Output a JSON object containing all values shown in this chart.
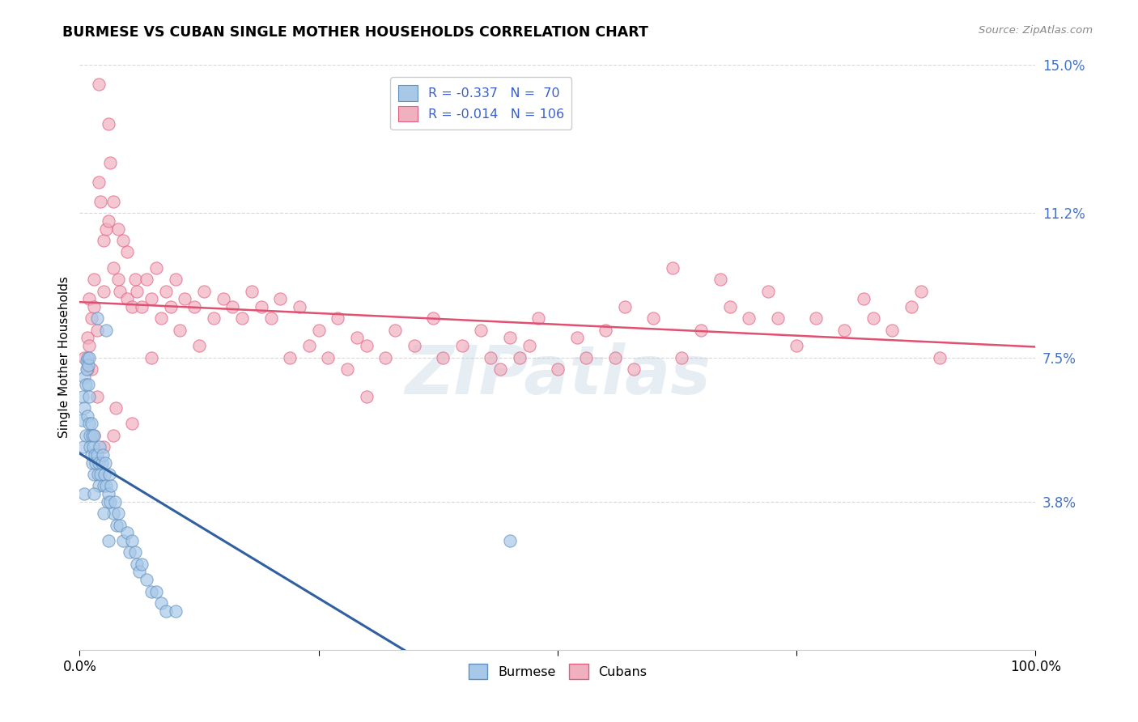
{
  "title": "BURMESE VS CUBAN SINGLE MOTHER HOUSEHOLDS CORRELATION CHART",
  "source": "Source: ZipAtlas.com",
  "ylabel": "Single Mother Households",
  "xmin": 0.0,
  "xmax": 100.0,
  "ymin": 0.0,
  "ymax": 15.0,
  "yticks": [
    3.8,
    7.5,
    11.2,
    15.0
  ],
  "ytick_labels": [
    "3.8%",
    "7.5%",
    "11.2%",
    "15.0%"
  ],
  "burmese_color": "#a8c8e8",
  "cuban_color": "#f0b0c0",
  "burmese_edge_color": "#6090c0",
  "cuban_edge_color": "#e06080",
  "burmese_line_color": "#3060a0",
  "cuban_line_color": "#e05070",
  "burmese_dash_color": "#90b8d8",
  "legend_label1": "R = -0.337   N =  70",
  "legend_label2": "R = -0.014   N = 106",
  "watermark": "ZIPatlas",
  "background_color": "#ffffff",
  "grid_color": "#d8d8d8",
  "burmese_data": [
    [
      0.2,
      5.9
    ],
    [
      0.3,
      6.5
    ],
    [
      0.4,
      5.2
    ],
    [
      0.5,
      7.0
    ],
    [
      0.5,
      6.2
    ],
    [
      0.6,
      6.8
    ],
    [
      0.6,
      5.5
    ],
    [
      0.7,
      7.4
    ],
    [
      0.7,
      7.2
    ],
    [
      0.8,
      7.5
    ],
    [
      0.8,
      6.0
    ],
    [
      0.9,
      7.3
    ],
    [
      0.9,
      6.8
    ],
    [
      1.0,
      7.5
    ],
    [
      1.0,
      6.5
    ],
    [
      1.0,
      5.8
    ],
    [
      1.1,
      5.5
    ],
    [
      1.1,
      5.2
    ],
    [
      1.2,
      5.8
    ],
    [
      1.2,
      5.0
    ],
    [
      1.3,
      4.8
    ],
    [
      1.3,
      5.5
    ],
    [
      1.4,
      5.2
    ],
    [
      1.5,
      5.5
    ],
    [
      1.5,
      4.5
    ],
    [
      1.6,
      5.0
    ],
    [
      1.7,
      4.8
    ],
    [
      1.8,
      5.0
    ],
    [
      1.9,
      4.5
    ],
    [
      2.0,
      4.2
    ],
    [
      2.0,
      4.8
    ],
    [
      2.1,
      5.2
    ],
    [
      2.2,
      4.5
    ],
    [
      2.3,
      4.8
    ],
    [
      2.4,
      5.0
    ],
    [
      2.5,
      4.2
    ],
    [
      2.6,
      4.5
    ],
    [
      2.7,
      4.8
    ],
    [
      2.8,
      4.2
    ],
    [
      2.9,
      3.8
    ],
    [
      3.0,
      4.0
    ],
    [
      3.1,
      4.5
    ],
    [
      3.2,
      3.8
    ],
    [
      3.3,
      4.2
    ],
    [
      3.5,
      3.5
    ],
    [
      3.7,
      3.8
    ],
    [
      3.9,
      3.2
    ],
    [
      4.0,
      3.5
    ],
    [
      4.2,
      3.2
    ],
    [
      4.5,
      2.8
    ],
    [
      5.0,
      3.0
    ],
    [
      5.2,
      2.5
    ],
    [
      5.5,
      2.8
    ],
    [
      5.8,
      2.5
    ],
    [
      6.0,
      2.2
    ],
    [
      6.2,
      2.0
    ],
    [
      6.5,
      2.2
    ],
    [
      7.0,
      1.8
    ],
    [
      7.5,
      1.5
    ],
    [
      8.0,
      1.5
    ],
    [
      8.5,
      1.2
    ],
    [
      9.0,
      1.0
    ],
    [
      10.0,
      1.0
    ],
    [
      2.8,
      8.2
    ],
    [
      1.8,
      8.5
    ],
    [
      0.5,
      4.0
    ],
    [
      1.5,
      4.0
    ],
    [
      2.5,
      3.5
    ],
    [
      45.0,
      2.8
    ],
    [
      3.0,
      2.8
    ]
  ],
  "cuban_data": [
    [
      0.5,
      7.5
    ],
    [
      0.8,
      8.0
    ],
    [
      1.0,
      7.8
    ],
    [
      1.0,
      9.0
    ],
    [
      1.2,
      8.5
    ],
    [
      1.2,
      7.2
    ],
    [
      1.5,
      8.8
    ],
    [
      1.5,
      9.5
    ],
    [
      1.8,
      8.2
    ],
    [
      2.0,
      14.5
    ],
    [
      2.0,
      12.0
    ],
    [
      2.2,
      11.5
    ],
    [
      2.5,
      10.5
    ],
    [
      2.5,
      9.2
    ],
    [
      2.8,
      10.8
    ],
    [
      3.0,
      13.5
    ],
    [
      3.0,
      11.0
    ],
    [
      3.2,
      12.5
    ],
    [
      3.5,
      9.8
    ],
    [
      3.5,
      11.5
    ],
    [
      4.0,
      9.5
    ],
    [
      4.0,
      10.8
    ],
    [
      4.2,
      9.2
    ],
    [
      4.5,
      10.5
    ],
    [
      5.0,
      9.0
    ],
    [
      5.0,
      10.2
    ],
    [
      5.5,
      8.8
    ],
    [
      5.8,
      9.5
    ],
    [
      6.0,
      9.2
    ],
    [
      6.5,
      8.8
    ],
    [
      7.0,
      9.5
    ],
    [
      7.5,
      9.0
    ],
    [
      8.0,
      9.8
    ],
    [
      8.5,
      8.5
    ],
    [
      9.0,
      9.2
    ],
    [
      9.5,
      8.8
    ],
    [
      10.0,
      9.5
    ],
    [
      10.5,
      8.2
    ],
    [
      11.0,
      9.0
    ],
    [
      12.0,
      8.8
    ],
    [
      12.5,
      7.8
    ],
    [
      13.0,
      9.2
    ],
    [
      14.0,
      8.5
    ],
    [
      15.0,
      9.0
    ],
    [
      16.0,
      8.8
    ],
    [
      17.0,
      8.5
    ],
    [
      18.0,
      9.2
    ],
    [
      19.0,
      8.8
    ],
    [
      20.0,
      8.5
    ],
    [
      21.0,
      9.0
    ],
    [
      22.0,
      7.5
    ],
    [
      23.0,
      8.8
    ],
    [
      24.0,
      7.8
    ],
    [
      25.0,
      8.2
    ],
    [
      26.0,
      7.5
    ],
    [
      27.0,
      8.5
    ],
    [
      28.0,
      7.2
    ],
    [
      29.0,
      8.0
    ],
    [
      30.0,
      7.8
    ],
    [
      32.0,
      7.5
    ],
    [
      33.0,
      8.2
    ],
    [
      35.0,
      7.8
    ],
    [
      37.0,
      8.5
    ],
    [
      38.0,
      7.5
    ],
    [
      40.0,
      7.8
    ],
    [
      42.0,
      8.2
    ],
    [
      43.0,
      7.5
    ],
    [
      44.0,
      7.2
    ],
    [
      45.0,
      8.0
    ],
    [
      46.0,
      7.5
    ],
    [
      47.0,
      7.8
    ],
    [
      48.0,
      8.5
    ],
    [
      50.0,
      7.2
    ],
    [
      52.0,
      8.0
    ],
    [
      53.0,
      7.5
    ],
    [
      55.0,
      8.2
    ],
    [
      56.0,
      7.5
    ],
    [
      57.0,
      8.8
    ],
    [
      58.0,
      7.2
    ],
    [
      60.0,
      8.5
    ],
    [
      62.0,
      9.8
    ],
    [
      63.0,
      7.5
    ],
    [
      65.0,
      8.2
    ],
    [
      67.0,
      9.5
    ],
    [
      68.0,
      8.8
    ],
    [
      70.0,
      8.5
    ],
    [
      72.0,
      9.2
    ],
    [
      73.0,
      8.5
    ],
    [
      75.0,
      7.8
    ],
    [
      77.0,
      8.5
    ],
    [
      80.0,
      8.2
    ],
    [
      82.0,
      9.0
    ],
    [
      83.0,
      8.5
    ],
    [
      85.0,
      8.2
    ],
    [
      87.0,
      8.8
    ],
    [
      88.0,
      9.2
    ],
    [
      90.0,
      7.5
    ],
    [
      1.5,
      5.5
    ],
    [
      2.5,
      5.2
    ],
    [
      3.5,
      5.5
    ],
    [
      5.5,
      5.8
    ],
    [
      7.5,
      7.5
    ],
    [
      0.8,
      7.2
    ],
    [
      1.8,
      6.5
    ],
    [
      3.8,
      6.2
    ],
    [
      30.0,
      6.5
    ]
  ]
}
